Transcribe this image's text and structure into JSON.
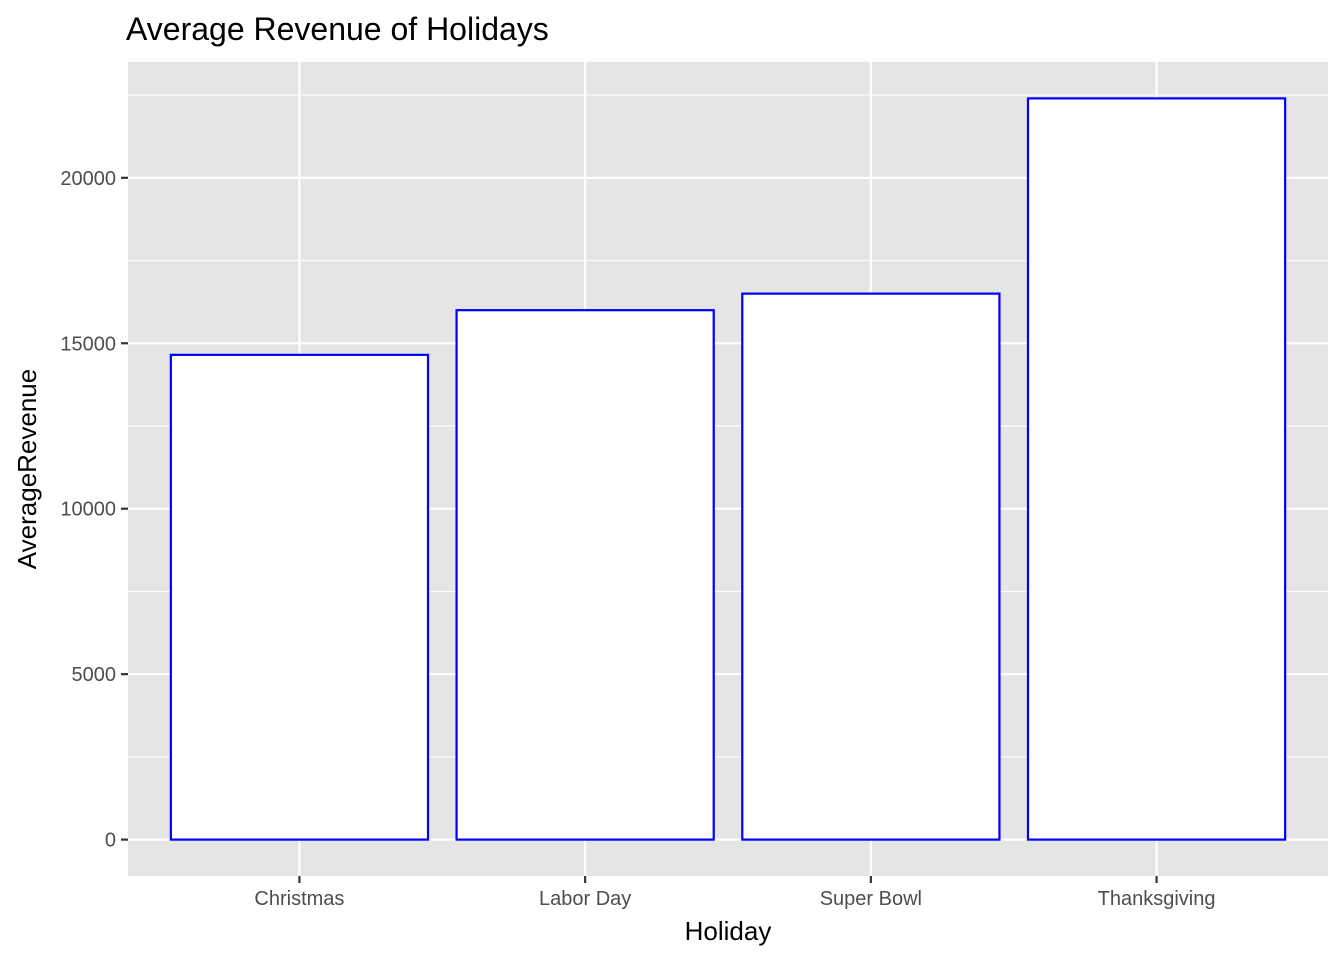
{
  "chart_data": {
    "type": "bar",
    "title": "Average Revenue of Holidays",
    "xlabel": "Holiday",
    "ylabel": "AverageRevenue",
    "categories": [
      "Christmas",
      "Labor Day",
      "Super Bowl",
      "Thanksgiving"
    ],
    "values": [
      14650,
      16000,
      16500,
      22400
    ],
    "ylim": [
      -1100,
      23500
    ],
    "yticks": [
      0,
      5000,
      10000,
      15000,
      20000
    ],
    "grid": true,
    "colors": {
      "panel_background": "#e5e5e5",
      "grid": "#ffffff",
      "bar_fill": "#ffffff",
      "bar_outline": "#0000ff",
      "tick_mark": "#333333",
      "tick_label": "#4d4d4d"
    }
  }
}
